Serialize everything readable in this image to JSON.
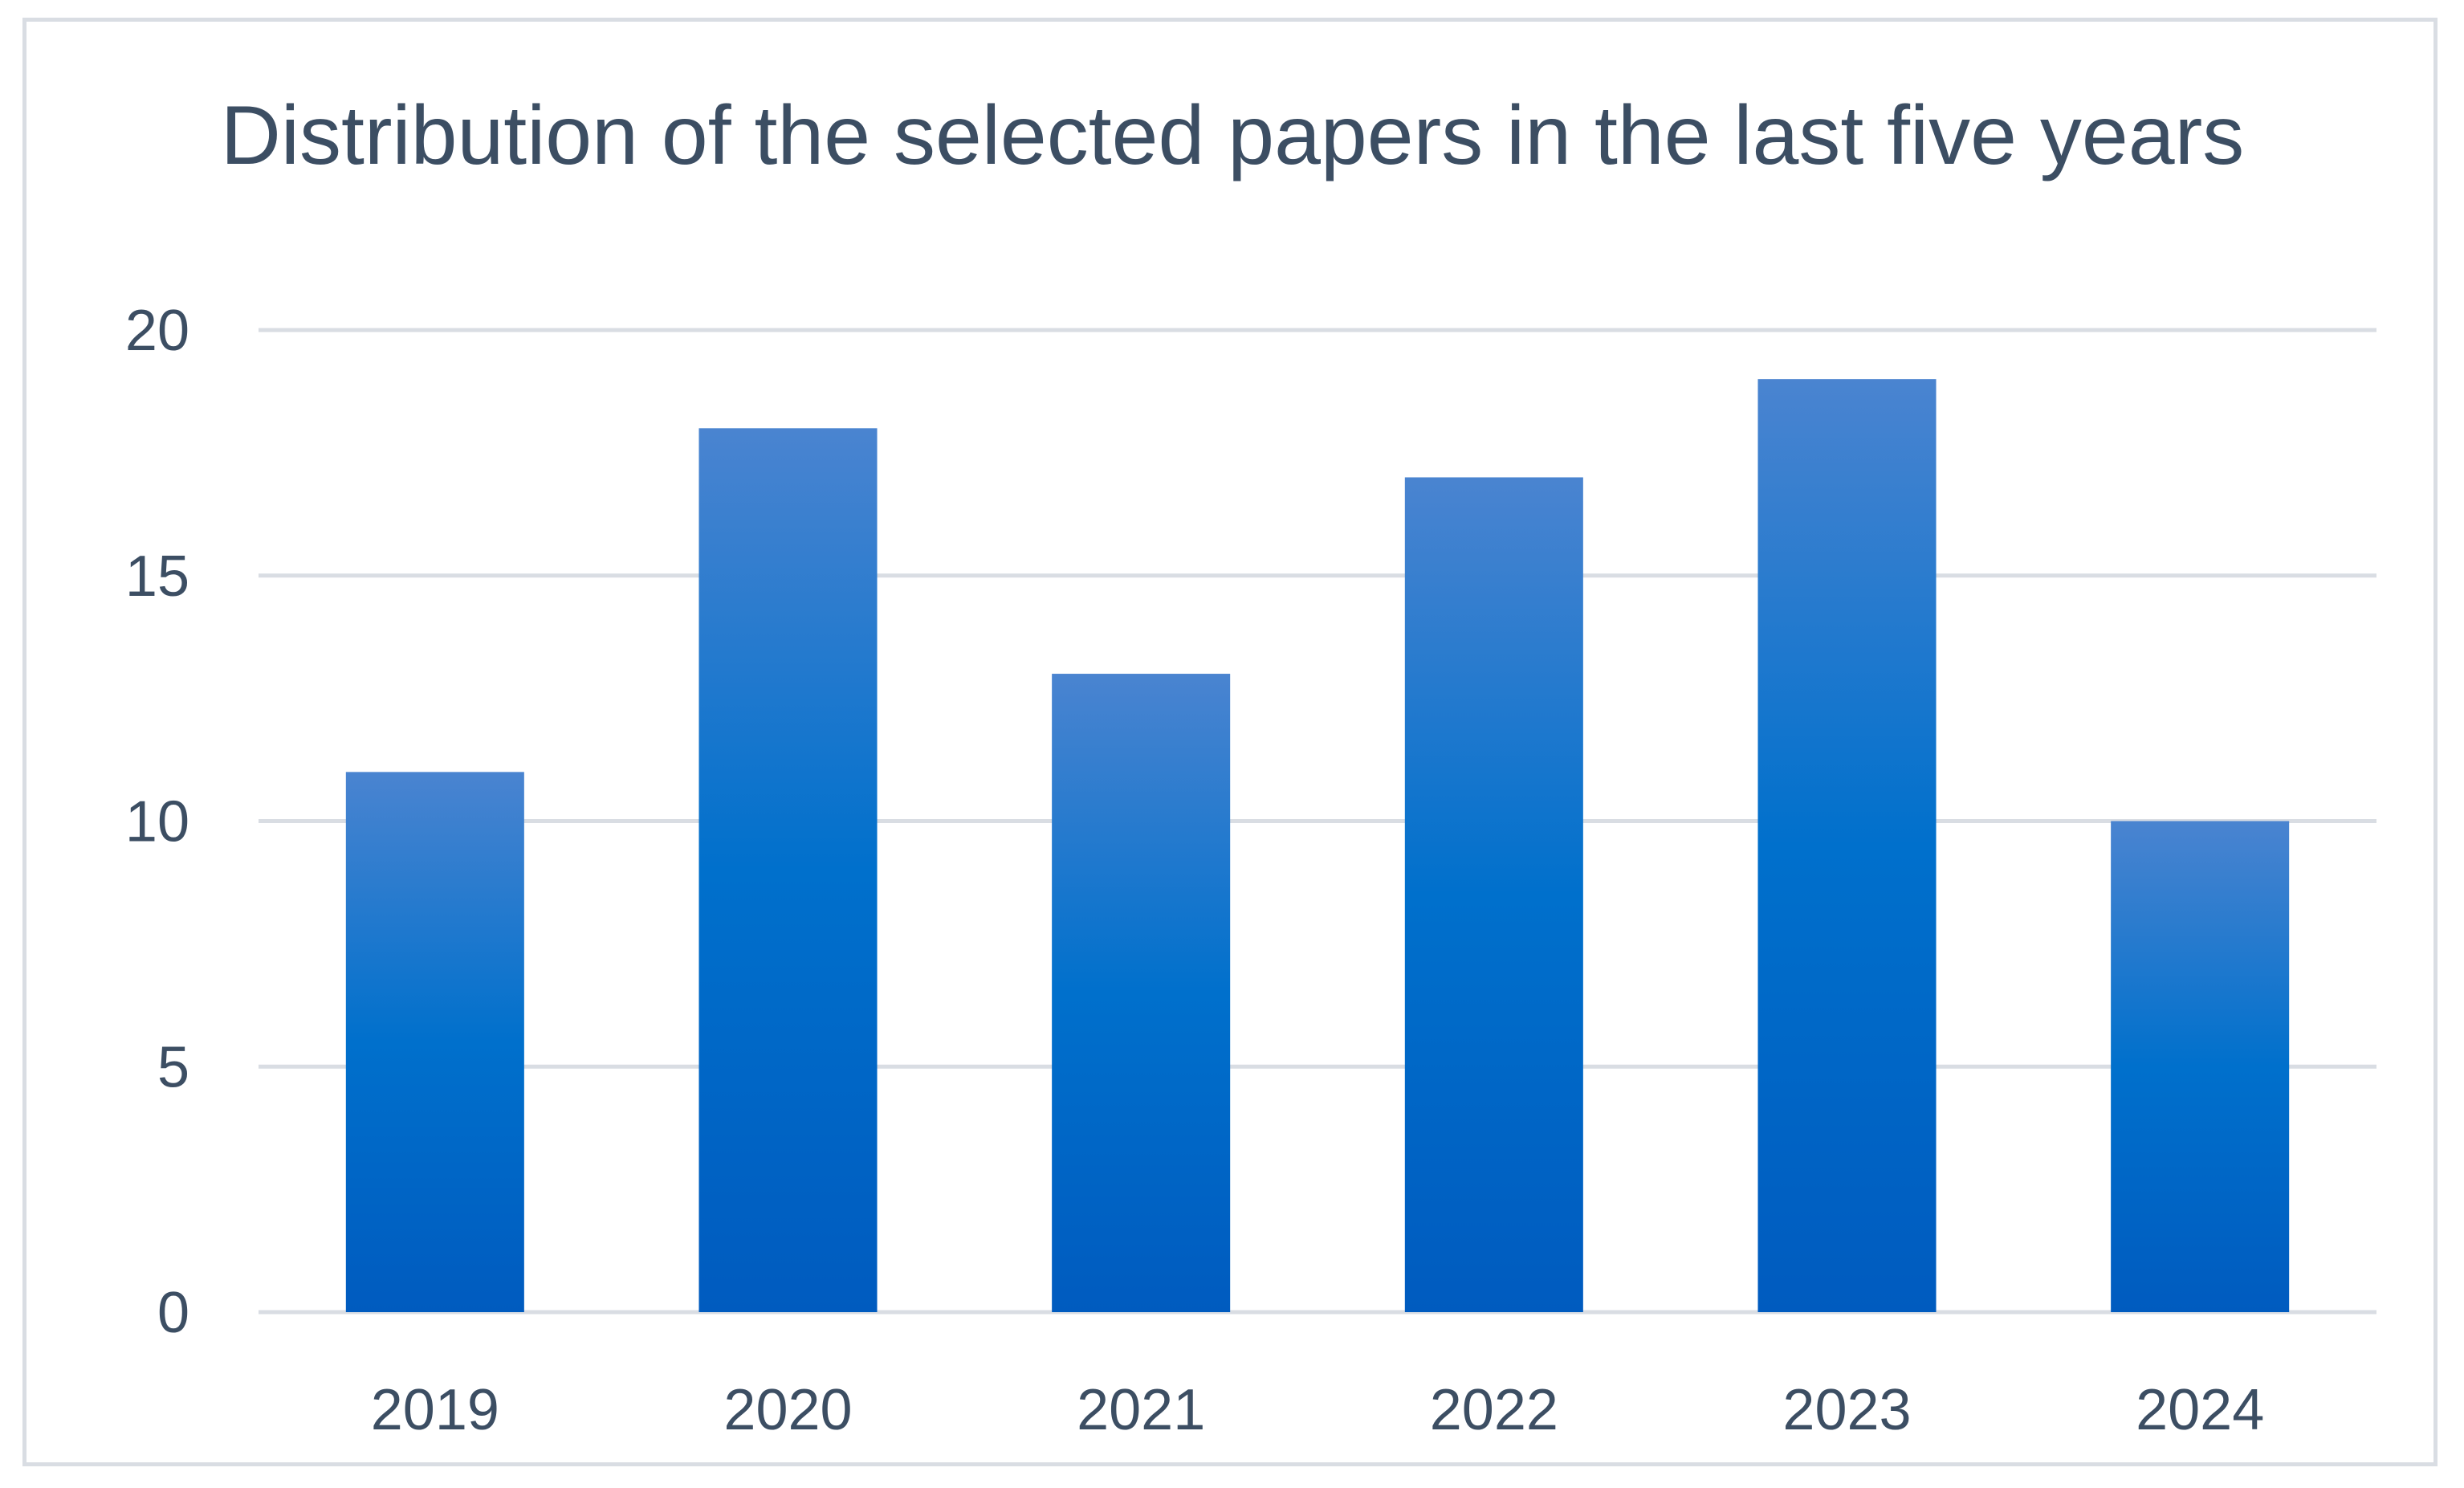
{
  "chart_data": {
    "type": "bar",
    "title": "Distribution of the selected papers in the last five years",
    "xlabel": "",
    "ylabel": "",
    "categories": [
      "2019",
      "2020",
      "2021",
      "2022",
      "2023",
      "2024"
    ],
    "values": [
      11,
      18,
      13,
      17,
      19,
      10
    ],
    "ylim": [
      0,
      20
    ],
    "yticks": [
      0,
      5,
      10,
      15,
      20
    ],
    "grid": true,
    "legend": "none",
    "colors": {
      "bar_top": "#4a84d0",
      "bar_mid": "#0070cc",
      "bar_bottom": "#005bbf",
      "gridline": "#d9dde3",
      "text": "#3c4e63",
      "frame": "#d9dde3"
    }
  }
}
